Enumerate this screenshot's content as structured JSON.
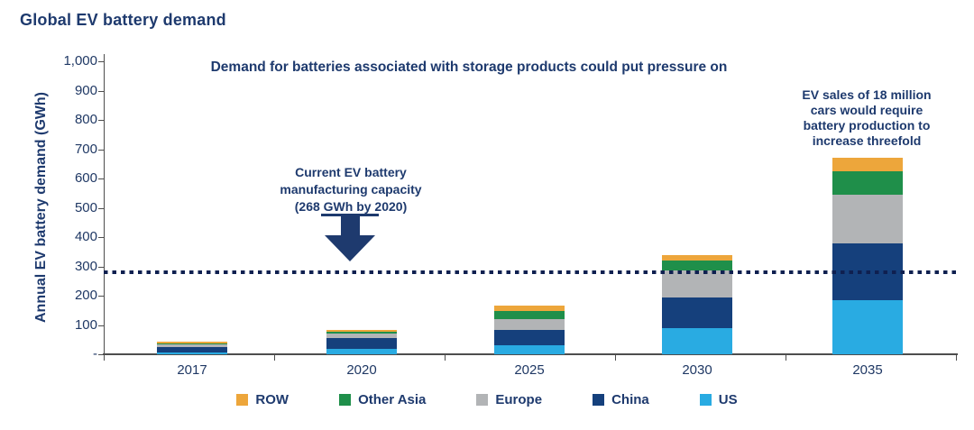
{
  "header": {
    "title": "Global EV battery demand"
  },
  "annotations": {
    "subtitle": "Demand for batteries associated with storage products could put pressure on",
    "capacity": {
      "lines": [
        "Current EV battery",
        "manufacturing capacity",
        "(268 GWh by 2020)"
      ]
    },
    "ev_sales": {
      "lines": [
        "EV sales of 18 million",
        "cars would require",
        "battery production to",
        "increase threefold"
      ]
    }
  },
  "chart_data": {
    "type": "bar",
    "stacked": true,
    "title": "Global EV battery demand",
    "xlabel": "",
    "ylabel": "Annual EV battery demand (GWh)",
    "ylim": [
      0,
      1000
    ],
    "grid": false,
    "legend_position": "bottom",
    "categories": [
      "2017",
      "2020",
      "2025",
      "2030",
      "2035"
    ],
    "series": [
      {
        "name": "US",
        "color": "#29abe2",
        "values": [
          6,
          18,
          31,
          90,
          185
        ]
      },
      {
        "name": "China",
        "color": "#15407c",
        "values": [
          20,
          36,
          52,
          105,
          195
        ]
      },
      {
        "name": "Europe",
        "color": "#b2b4b6",
        "values": [
          7,
          18,
          36,
          90,
          165
        ]
      },
      {
        "name": "Other Asia",
        "color": "#1f8f4a",
        "values": [
          3,
          4,
          28,
          35,
          80
        ]
      },
      {
        "name": "ROW",
        "color": "#eda63b",
        "values": [
          6,
          7,
          18,
          20,
          45
        ]
      }
    ],
    "legend_order": [
      "ROW",
      "Other Asia",
      "Europe",
      "China",
      "US"
    ],
    "ytick_labels": [
      "1,000",
      "900",
      "800",
      "700",
      "600",
      "500",
      "400",
      "300",
      "200",
      "100",
      "-"
    ],
    "ytick_values": [
      1000,
      900,
      800,
      700,
      600,
      500,
      400,
      300,
      200,
      100,
      0
    ],
    "reference_line": {
      "value": 280,
      "label": "Current EV battery manufacturing capacity (268 GWh by 2020)",
      "style": "dotted",
      "color": "#0f2050"
    }
  },
  "colors": {
    "text_navy": "#1e3a6e",
    "axis": "#4d4d4d"
  }
}
